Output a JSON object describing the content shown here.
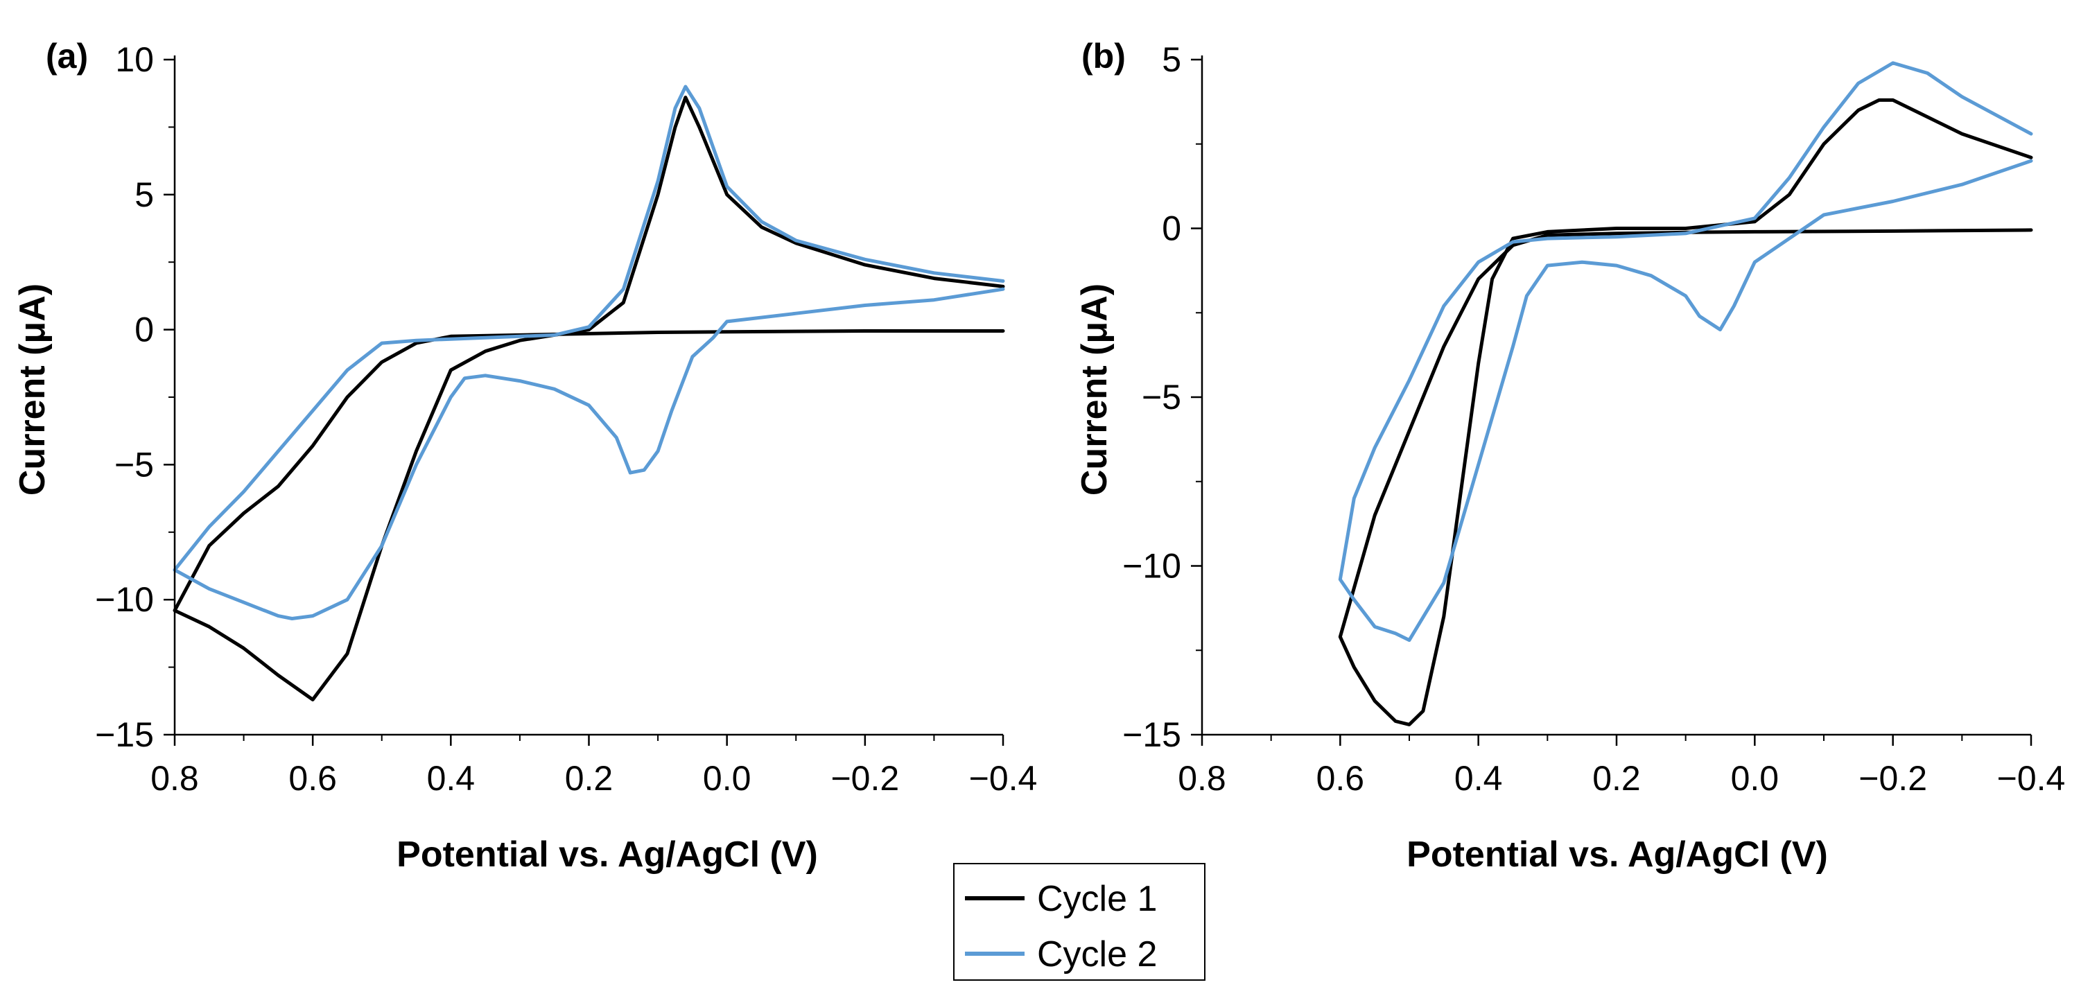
{
  "legend": {
    "entries": [
      {
        "label": "Cycle 1",
        "color": "#000000"
      },
      {
        "label": "Cycle 2",
        "color": "#5b9bd5"
      }
    ]
  },
  "chart_data": [
    {
      "panel_label": "(a)",
      "type": "line",
      "xlabel": "Potential vs. Ag/AgCl (V)",
      "ylabel": "Current (μA)",
      "xlim": [
        0.8,
        -0.4
      ],
      "ylim": [
        -15,
        10
      ],
      "xticks": [
        "0.8",
        "0.6",
        "0.4",
        "0.2",
        "0.0",
        "−0.2",
        "−0.4"
      ],
      "yticks": [
        "10",
        "5",
        "0",
        "−5",
        "−10",
        "−15"
      ],
      "xtick_values": [
        0.8,
        0.6,
        0.4,
        0.2,
        0.0,
        -0.2,
        -0.4
      ],
      "ytick_values": [
        10,
        5,
        0,
        -5,
        -10,
        -15
      ],
      "series": [
        {
          "name": "Cycle 1",
          "color": "#000000",
          "x": [
            -0.4,
            -0.2,
            0.0,
            0.1,
            0.2,
            0.3,
            0.4,
            0.45,
            0.5,
            0.55,
            0.6,
            0.65,
            0.7,
            0.75,
            0.8,
            0.75,
            0.7,
            0.65,
            0.6,
            0.55,
            0.5,
            0.45,
            0.4,
            0.35,
            0.3,
            0.25,
            0.2,
            0.15,
            0.1,
            0.075,
            0.06,
            0.04,
            0.0,
            -0.05,
            -0.1,
            -0.2,
            -0.3,
            -0.4
          ],
          "y": [
            -0.05,
            -0.05,
            -0.08,
            -0.1,
            -0.15,
            -0.2,
            -0.25,
            -0.5,
            -1.2,
            -2.5,
            -4.3,
            -5.8,
            -6.8,
            -8.0,
            -10.4,
            -11.0,
            -11.8,
            -12.8,
            -13.7,
            -12.0,
            -8.0,
            -4.5,
            -1.5,
            -0.8,
            -0.4,
            -0.2,
            0.0,
            1.0,
            5.0,
            7.5,
            8.6,
            7.5,
            5.0,
            3.8,
            3.2,
            2.4,
            1.9,
            1.6
          ]
        },
        {
          "name": "Cycle 2",
          "color": "#5b9bd5",
          "x": [
            -0.4,
            -0.3,
            -0.2,
            -0.1,
            0.0,
            0.02,
            0.05,
            0.08,
            0.1,
            0.12,
            0.14,
            0.16,
            0.2,
            0.25,
            0.3,
            0.35,
            0.38,
            0.4,
            0.45,
            0.5,
            0.55,
            0.6,
            0.63,
            0.65,
            0.7,
            0.75,
            0.8,
            0.75,
            0.7,
            0.65,
            0.6,
            0.55,
            0.5,
            0.45,
            0.4,
            0.35,
            0.3,
            0.25,
            0.2,
            0.15,
            0.1,
            0.075,
            0.06,
            0.04,
            0.0,
            -0.05,
            -0.1,
            -0.2,
            -0.3,
            -0.4
          ],
          "y": [
            1.5,
            1.1,
            0.9,
            0.6,
            0.3,
            -0.3,
            -1.0,
            -3.0,
            -4.5,
            -5.2,
            -5.3,
            -4.0,
            -2.8,
            -2.2,
            -1.9,
            -1.7,
            -1.8,
            -2.5,
            -5.0,
            -8.0,
            -10.0,
            -10.6,
            -10.7,
            -10.6,
            -10.1,
            -9.6,
            -8.9,
            -7.3,
            -6.0,
            -4.5,
            -3.0,
            -1.5,
            -0.5,
            -0.4,
            -0.35,
            -0.3,
            -0.25,
            -0.2,
            0.1,
            1.5,
            5.5,
            8.2,
            9.0,
            8.2,
            5.3,
            4.0,
            3.3,
            2.6,
            2.1,
            1.8
          ]
        }
      ]
    },
    {
      "panel_label": "(b)",
      "type": "line",
      "xlabel": "Potential vs. Ag/AgCl (V)",
      "ylabel": "Current (μA)",
      "xlim": [
        0.8,
        -0.4
      ],
      "ylim": [
        -15,
        5
      ],
      "xticks": [
        "0.8",
        "0.6",
        "0.4",
        "0.2",
        "0.0",
        "−0.2",
        "−0.4"
      ],
      "yticks": [
        "5",
        "0",
        "−5",
        "−10",
        "−15"
      ],
      "xtick_values": [
        0.8,
        0.6,
        0.4,
        0.2,
        0.0,
        -0.2,
        -0.4
      ],
      "ytick_values": [
        5,
        0,
        -5,
        -10,
        -15
      ],
      "series": [
        {
          "name": "Cycle 1",
          "color": "#000000",
          "x": [
            -0.4,
            -0.2,
            0.0,
            0.1,
            0.2,
            0.3,
            0.35,
            0.4,
            0.45,
            0.5,
            0.55,
            0.6,
            0.58,
            0.55,
            0.52,
            0.5,
            0.48,
            0.45,
            0.42,
            0.4,
            0.38,
            0.35,
            0.3,
            0.2,
            0.1,
            0.0,
            -0.05,
            -0.1,
            -0.15,
            -0.18,
            -0.2,
            -0.25,
            -0.3,
            -0.4
          ],
          "y": [
            -0.05,
            -0.08,
            -0.1,
            -0.12,
            -0.15,
            -0.2,
            -0.5,
            -1.5,
            -3.5,
            -6.0,
            -8.5,
            -12.1,
            -13.0,
            -14.0,
            -14.6,
            -14.7,
            -14.3,
            -11.5,
            -7.0,
            -4.0,
            -1.5,
            -0.3,
            -0.1,
            0.0,
            0.0,
            0.2,
            1.0,
            2.5,
            3.5,
            3.8,
            3.8,
            3.3,
            2.8,
            2.1
          ]
        },
        {
          "name": "Cycle 2",
          "color": "#5b9bd5",
          "x": [
            -0.4,
            -0.3,
            -0.2,
            -0.1,
            -0.05,
            0.0,
            0.03,
            0.05,
            0.08,
            0.1,
            0.15,
            0.2,
            0.25,
            0.3,
            0.33,
            0.35,
            0.4,
            0.45,
            0.5,
            0.52,
            0.55,
            0.58,
            0.6,
            0.58,
            0.55,
            0.5,
            0.45,
            0.4,
            0.35,
            0.3,
            0.2,
            0.1,
            0.0,
            -0.05,
            -0.1,
            -0.15,
            -0.2,
            -0.25,
            -0.3,
            -0.4
          ],
          "y": [
            2.0,
            1.3,
            0.8,
            0.4,
            -0.3,
            -1.0,
            -2.3,
            -3.0,
            -2.6,
            -2.0,
            -1.4,
            -1.1,
            -1.0,
            -1.1,
            -2.0,
            -3.5,
            -7.0,
            -10.5,
            -12.2,
            -12.0,
            -11.8,
            -11.0,
            -10.4,
            -8.0,
            -6.5,
            -4.5,
            -2.3,
            -1.0,
            -0.4,
            -0.3,
            -0.25,
            -0.15,
            0.3,
            1.5,
            3.0,
            4.3,
            4.9,
            4.6,
            3.9,
            2.8
          ]
        }
      ]
    }
  ]
}
